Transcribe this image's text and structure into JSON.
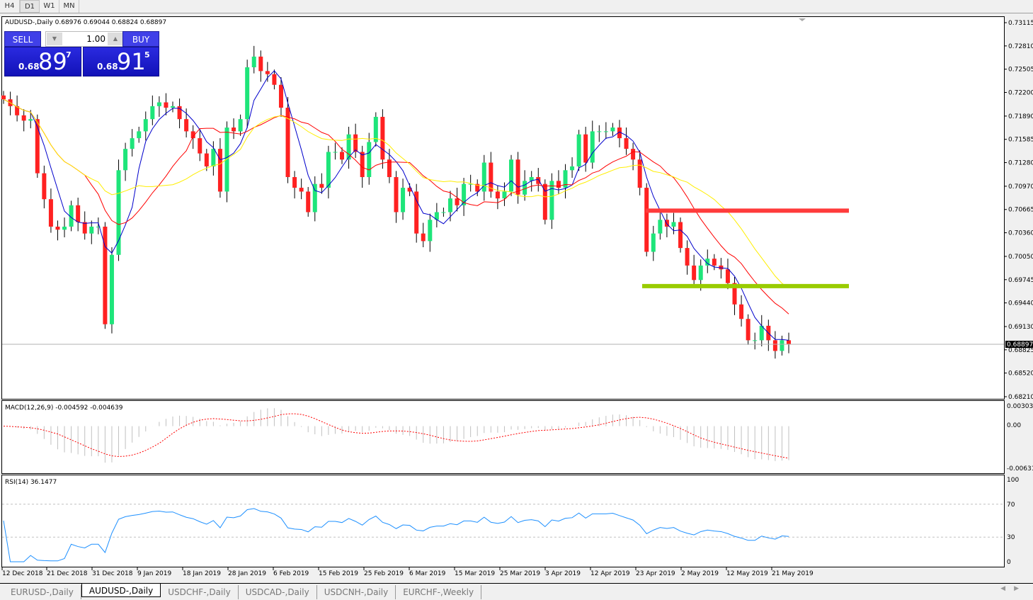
{
  "timeframes": [
    {
      "label": "H4"
    },
    {
      "label": "D1",
      "active": true
    },
    {
      "label": "W1"
    },
    {
      "label": "MN"
    }
  ],
  "chart": {
    "title": "AUDUSD-,Daily  0.68976 0.69044 0.68824 0.68897",
    "symbol": "AUDUSD-",
    "period": "Daily",
    "ohlc": {
      "open": 0.68976,
      "high": 0.69044,
      "low": 0.68824,
      "close": 0.68897
    },
    "current_price_label": "0.68897",
    "colors": {
      "bull": "#1ee57a",
      "bear": "#ff2121",
      "ma_fast": "#0000cc",
      "ma_mid": "#ff0000",
      "ma_slow": "#ffee00",
      "resistance": "#ff3b3b",
      "support": "#99cc00",
      "macd_hist": "#c0c0c0",
      "macd_signal": "#ff0000",
      "rsi": "#1e90ff"
    },
    "price_axis": [
      "0.73115",
      "0.72810",
      "0.72505",
      "0.72200",
      "0.71890",
      "0.71585",
      "0.71280",
      "0.70970",
      "0.70665",
      "0.70360",
      "0.70050",
      "0.69745",
      "0.69440",
      "0.69130",
      "0.68825",
      "0.68520",
      "0.68210"
    ],
    "horizontal_lines": [
      {
        "price": 0.7065,
        "color": "#ff3b3b"
      },
      {
        "price": 0.6966,
        "color": "#99cc00"
      }
    ],
    "closes": [
      0.7211,
      0.7202,
      0.719,
      0.7183,
      0.7185,
      0.7114,
      0.708,
      0.7044,
      0.704,
      0.7044,
      0.7072,
      0.705,
      0.7035,
      0.7044,
      0.7044,
      0.6916,
      0.7007,
      0.7118,
      0.7146,
      0.716,
      0.7169,
      0.7185,
      0.7202,
      0.7207,
      0.72,
      0.7202,
      0.7185,
      0.7169,
      0.716,
      0.714,
      0.7123,
      0.7146,
      0.709,
      0.7174,
      0.7169,
      0.7185,
      0.7253,
      0.7267,
      0.7248,
      0.7244,
      0.723,
      0.72,
      0.7109,
      0.7095,
      0.709,
      0.7063,
      0.71,
      0.7095,
      0.7142,
      0.7142,
      0.7132,
      0.7165,
      0.7142,
      0.7109,
      0.7155,
      0.7188,
      0.7132,
      0.7109,
      0.7063,
      0.7095,
      0.709,
      0.7035,
      0.7025,
      0.7053,
      0.7063,
      0.7063,
      0.7081,
      0.7072,
      0.71,
      0.71,
      0.709,
      0.7128,
      0.709,
      0.7081,
      0.709,
      0.7132,
      0.7086,
      0.7104,
      0.7109,
      0.71,
      0.7053,
      0.7104,
      0.7095,
      0.7118,
      0.7123,
      0.7165,
      0.7128,
      0.7169,
      0.7169,
      0.7169,
      0.7174,
      0.716,
      0.7146,
      0.7132,
      0.7095,
      0.7011,
      0.7035,
      0.7053,
      0.7044,
      0.705,
      0.7016,
      0.6993,
      0.6974,
      0.6993,
      0.7002,
      0.6993,
      0.6988,
      0.697,
      0.6942,
      0.6923,
      0.6895,
      0.6895,
      0.6914,
      0.6895,
      0.6881,
      0.6895,
      0.689
    ],
    "dates": [
      "12 Dec 2018",
      "21 Dec 2018",
      "31 Dec 2018",
      "9 Jan 2019",
      "18 Jan 2019",
      "28 Jan 2019",
      "6 Feb 2019",
      "15 Feb 2019",
      "25 Feb 2019",
      "6 Mar 2019",
      "15 Mar 2019",
      "25 Mar 2019",
      "3 Apr 2019",
      "12 Apr 2019",
      "23 Apr 2019",
      "2 May 2019",
      "12 May 2019",
      "21 May 2019"
    ]
  },
  "trade_panel": {
    "sell_label": "SELL",
    "buy_label": "BUY",
    "lot": "1.00",
    "sell_prefix": "0.68",
    "sell_big": "89",
    "sell_sup": "7",
    "buy_prefix": "0.68",
    "buy_big": "91",
    "buy_sup": "5"
  },
  "macd": {
    "label": "MACD(12,26,9) -0.004592 -0.004639",
    "scale": [
      "0.003035",
      "0.00",
      "-0.00631"
    ]
  },
  "rsi": {
    "label": "RSI(14) 36.1477",
    "scale": [
      "100",
      "70",
      "30",
      "0"
    ]
  },
  "tabs": [
    {
      "label": "EURUSD-,Daily"
    },
    {
      "label": "AUDUSD-,Daily",
      "active": true
    },
    {
      "label": "USDCHF-,Daily"
    },
    {
      "label": "USDCAD-,Daily"
    },
    {
      "label": "USDCNH-,Daily"
    },
    {
      "label": "EURCHF-,Weekly"
    }
  ]
}
